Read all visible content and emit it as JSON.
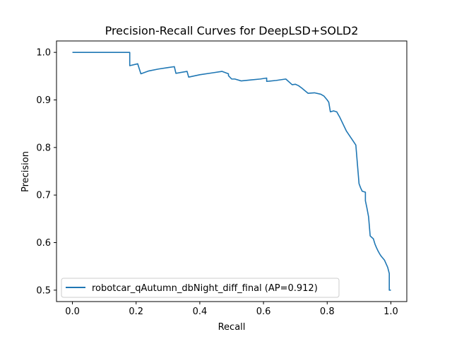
{
  "chart_data": {
    "type": "line",
    "title": "Precision-Recall Curves for DeepLSD+SOLD2",
    "xlabel": "Recall",
    "ylabel": "Precision",
    "xlim": [
      -0.05,
      1.05
    ],
    "ylim": [
      0.476,
      1.024
    ],
    "xticks": [
      0.0,
      0.2,
      0.4,
      0.6,
      0.8,
      1.0
    ],
    "xtick_labels": [
      "0.0",
      "0.2",
      "0.4",
      "0.6",
      "0.8",
      "1.0"
    ],
    "yticks": [
      0.5,
      0.6,
      0.7,
      0.8,
      0.9,
      1.0
    ],
    "ytick_labels": [
      "0.5",
      "0.6",
      "0.7",
      "0.8",
      "0.9",
      "1.0"
    ],
    "grid": false,
    "legend_position": "lower-left",
    "series": [
      {
        "name": "robotcar_qAutumn_dbNight_diff_final (AP=0.912)",
        "color": "#1f77b4",
        "x": [
          0.0,
          0.05,
          0.1,
          0.15,
          0.18,
          0.18,
          0.205,
          0.215,
          0.24,
          0.27,
          0.3,
          0.32,
          0.325,
          0.36,
          0.365,
          0.4,
          0.44,
          0.47,
          0.49,
          0.49,
          0.5,
          0.51,
          0.53,
          0.56,
          0.59,
          0.61,
          0.61,
          0.64,
          0.67,
          0.69,
          0.7,
          0.71,
          0.72,
          0.74,
          0.76,
          0.78,
          0.79,
          0.8,
          0.805,
          0.81,
          0.82,
          0.83,
          0.84,
          0.86,
          0.88,
          0.89,
          0.9,
          0.905,
          0.91,
          0.92,
          0.92,
          0.925,
          0.93,
          0.935,
          0.94,
          0.945,
          0.95,
          0.955,
          0.96,
          0.965,
          0.97,
          0.98,
          0.99,
          0.995,
          0.995,
          1.0
        ],
        "y": [
          1.0,
          1.0,
          1.0,
          1.0,
          1.0,
          0.972,
          0.976,
          0.955,
          0.961,
          0.965,
          0.968,
          0.97,
          0.956,
          0.96,
          0.948,
          0.953,
          0.957,
          0.96,
          0.955,
          0.951,
          0.944,
          0.944,
          0.94,
          0.942,
          0.944,
          0.946,
          0.939,
          0.941,
          0.944,
          0.932,
          0.933,
          0.93,
          0.925,
          0.914,
          0.915,
          0.912,
          0.908,
          0.9,
          0.895,
          0.875,
          0.877,
          0.875,
          0.863,
          0.835,
          0.815,
          0.805,
          0.724,
          0.715,
          0.708,
          0.706,
          0.688,
          0.672,
          0.654,
          0.614,
          0.611,
          0.608,
          0.597,
          0.589,
          0.582,
          0.576,
          0.571,
          0.563,
          0.548,
          0.535,
          0.5,
          0.5
        ]
      }
    ]
  }
}
